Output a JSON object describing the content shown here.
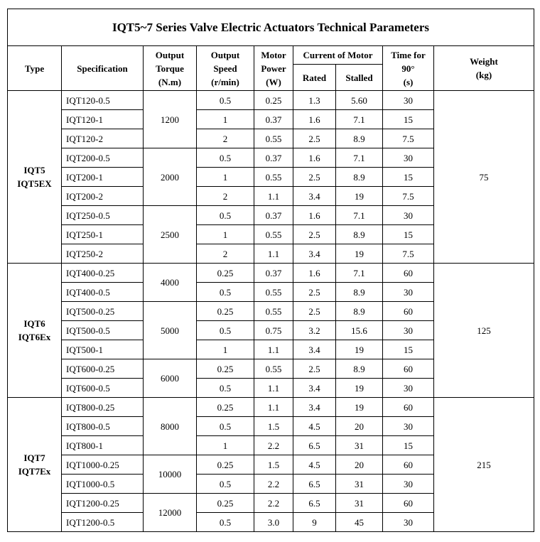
{
  "title": "IQT5~7 Series Valve Electric Actuators Technical Parameters",
  "headers": {
    "type": "Type",
    "specification": "Specification",
    "torque": [
      "Output",
      "Torque",
      "(N.m)"
    ],
    "speed": [
      "Output",
      "Speed",
      "(r/min)"
    ],
    "power": [
      "Motor",
      "Power",
      "(W)"
    ],
    "current": "Current of Motor",
    "rated": "Rated",
    "stalled": "Stalled",
    "time": [
      "Time for",
      "90°",
      "(s)"
    ],
    "weight": [
      "Weight",
      "(kg)"
    ]
  },
  "groups": [
    {
      "type": [
        "IQT5",
        "IQT5EX"
      ],
      "weight": "75",
      "torque_groups": [
        {
          "torque": "1200",
          "rows": [
            [
              "IQT120-0.5",
              "0.5",
              "0.25",
              "1.3",
              "5.60",
              "30"
            ],
            [
              "IQT120-1",
              "1",
              "0.37",
              "1.6",
              "7.1",
              "15"
            ],
            [
              "IQT120-2",
              "2",
              "0.55",
              "2.5",
              "8.9",
              "7.5"
            ]
          ]
        },
        {
          "torque": "2000",
          "rows": [
            [
              "IQT200-0.5",
              "0.5",
              "0.37",
              "1.6",
              "7.1",
              "30"
            ],
            [
              "IQT200-1",
              "1",
              "0.55",
              "2.5",
              "8.9",
              "15"
            ],
            [
              "IQT200-2",
              "2",
              "1.1",
              "3.4",
              "19",
              "7.5"
            ]
          ]
        },
        {
          "torque": "2500",
          "rows": [
            [
              "IQT250-0.5",
              "0.5",
              "0.37",
              "1.6",
              "7.1",
              "30"
            ],
            [
              "IQT250-1",
              "1",
              "0.55",
              "2.5",
              "8.9",
              "15"
            ],
            [
              "IQT250-2",
              "2",
              "1.1",
              "3.4",
              "19",
              "7.5"
            ]
          ]
        }
      ]
    },
    {
      "type": [
        "IQT6",
        "IQT6Ex"
      ],
      "weight": "125",
      "torque_groups": [
        {
          "torque": "4000",
          "rows": [
            [
              "IQT400-0.25",
              "0.25",
              "0.37",
              "1.6",
              "7.1",
              "60"
            ],
            [
              "IQT400-0.5",
              "0.5",
              "0.55",
              "2.5",
              "8.9",
              "30"
            ]
          ]
        },
        {
          "torque": "5000",
          "rows": [
            [
              "IQT500-0.25",
              "0.25",
              "0.55",
              "2.5",
              "8.9",
              "60"
            ],
            [
              "IQT500-0.5",
              "0.5",
              "0.75",
              "3.2",
              "15.6",
              "30"
            ],
            [
              "IQT500-1",
              "1",
              "1.1",
              "3.4",
              "19",
              "15"
            ]
          ]
        },
        {
          "torque": "6000",
          "rows": [
            [
              "IQT600-0.25",
              "0.25",
              "0.55",
              "2.5",
              "8.9",
              "60"
            ],
            [
              "IQT600-0.5",
              "0.5",
              "1.1",
              "3.4",
              "19",
              "30"
            ]
          ]
        }
      ]
    },
    {
      "type": [
        "IQT7",
        "IQT7Ex"
      ],
      "weight": "215",
      "torque_groups": [
        {
          "torque": "8000",
          "rows": [
            [
              "IQT800-0.25",
              "0.25",
              "1.1",
              "3.4",
              "19",
              "60"
            ],
            [
              "IQT800-0.5",
              "0.5",
              "1.5",
              "4.5",
              "20",
              "30"
            ],
            [
              "IQT800-1",
              "1",
              "2.2",
              "6.5",
              "31",
              "15"
            ]
          ]
        },
        {
          "torque": "10000",
          "rows": [
            [
              "IQT1000-0.25",
              "0.25",
              "1.5",
              "4.5",
              "20",
              "60"
            ],
            [
              "IQT1000-0.5",
              "0.5",
              "2.2",
              "6.5",
              "31",
              "30"
            ]
          ]
        },
        {
          "torque": "12000",
          "rows": [
            [
              "IQT1200-0.25",
              "0.25",
              "2.2",
              "6.5",
              "31",
              "60"
            ],
            [
              "IQT1200-0.5",
              "0.5",
              "3.0",
              "9",
              "45",
              "30"
            ]
          ]
        }
      ]
    }
  ]
}
